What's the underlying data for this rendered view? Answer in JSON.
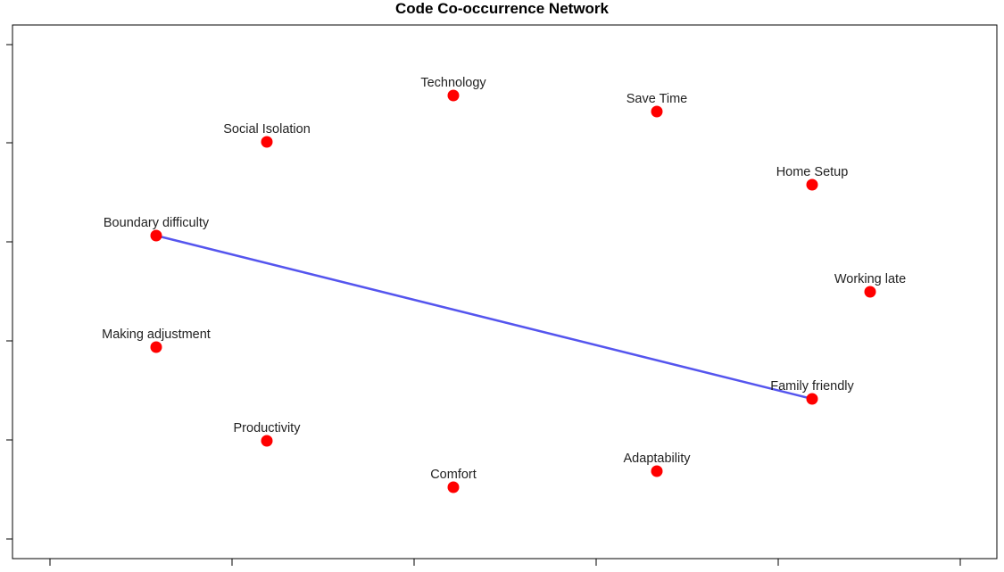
{
  "title": "Code Co-occurrence Network",
  "nodes": [
    {
      "id": "technology",
      "label": "Technology"
    },
    {
      "id": "save-time",
      "label": "Save Time"
    },
    {
      "id": "social-isolation",
      "label": "Social Isolation"
    },
    {
      "id": "home-setup",
      "label": "Home Setup"
    },
    {
      "id": "boundary-difficulty",
      "label": "Boundary difficulty"
    },
    {
      "id": "working-late",
      "label": "Working late"
    },
    {
      "id": "making-adjustment",
      "label": "Making adjustment"
    },
    {
      "id": "family-friendly",
      "label": "Family friendly"
    },
    {
      "id": "productivity",
      "label": "Productivity"
    },
    {
      "id": "adaptability",
      "label": "Adaptability"
    },
    {
      "id": "comfort",
      "label": "Comfort"
    }
  ],
  "edges": [
    {
      "source": "boundary-difficulty",
      "target": "family-friendly"
    }
  ],
  "colors": {
    "node": "#ff0000",
    "edge": "#5555ee",
    "axis": "#000000"
  }
}
